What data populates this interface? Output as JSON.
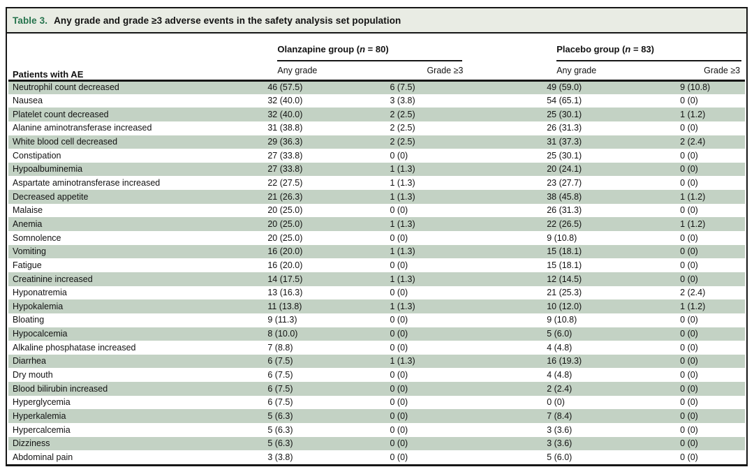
{
  "colors": {
    "stripe_green": "#c3d2c4",
    "title_bar_bg": "#e9ece4",
    "table_label_green": "#26734d",
    "rule_black": "#161616"
  },
  "table": {
    "label": "Table 3.",
    "title": "Any grade and grade ≥3 adverse events in the safety analysis set population",
    "row_header": "Patients with AE",
    "groups": [
      {
        "prefix": "Olanzapine group (",
        "n_symbol": "n",
        "suffix": " = 80)",
        "subcolumns": [
          "Any grade",
          "Grade ≥3"
        ]
      },
      {
        "prefix": "Placebo group (",
        "n_symbol": "n",
        "suffix": " = 83)",
        "subcolumns": [
          "Any grade",
          "Grade ≥3"
        ]
      }
    ],
    "rows": [
      {
        "ae": "Neutrophil count decreased",
        "olz_any": "46 (57.5)",
        "olz_g3": "6 (7.5)",
        "pbo_any": "49 (59.0)",
        "pbo_g3": "9 (10.8)"
      },
      {
        "ae": "Nausea",
        "olz_any": "32 (40.0)",
        "olz_g3": "3 (3.8)",
        "pbo_any": "54 (65.1)",
        "pbo_g3": "0 (0)"
      },
      {
        "ae": "Platelet count decreased",
        "olz_any": "32 (40.0)",
        "olz_g3": "2 (2.5)",
        "pbo_any": "25 (30.1)",
        "pbo_g3": "1 (1.2)"
      },
      {
        "ae": "Alanine aminotransferase increased",
        "olz_any": "31 (38.8)",
        "olz_g3": "2 (2.5)",
        "pbo_any": "26 (31.3)",
        "pbo_g3": "0 (0)"
      },
      {
        "ae": "White blood cell decreased",
        "olz_any": "29 (36.3)",
        "olz_g3": "2 (2.5)",
        "pbo_any": "31 (37.3)",
        "pbo_g3": "2 (2.4)"
      },
      {
        "ae": "Constipation",
        "olz_any": "27 (33.8)",
        "olz_g3": "0 (0)",
        "pbo_any": "25 (30.1)",
        "pbo_g3": "0 (0)"
      },
      {
        "ae": "Hypoalbuminemia",
        "olz_any": "27 (33.8)",
        "olz_g3": "1 (1.3)",
        "pbo_any": "20 (24.1)",
        "pbo_g3": "0 (0)"
      },
      {
        "ae": "Aspartate aminotransferase increased",
        "olz_any": "22 (27.5)",
        "olz_g3": "1 (1.3)",
        "pbo_any": "23 (27.7)",
        "pbo_g3": "0 (0)"
      },
      {
        "ae": "Decreased appetite",
        "olz_any": "21 (26.3)",
        "olz_g3": "1 (1.3)",
        "pbo_any": "38 (45.8)",
        "pbo_g3": "1 (1.2)"
      },
      {
        "ae": "Malaise",
        "olz_any": "20 (25.0)",
        "olz_g3": "0 (0)",
        "pbo_any": "26 (31.3)",
        "pbo_g3": "0 (0)"
      },
      {
        "ae": "Anemia",
        "olz_any": "20 (25.0)",
        "olz_g3": "1 (1.3)",
        "pbo_any": "22 (26.5)",
        "pbo_g3": "1 (1.2)"
      },
      {
        "ae": "Somnolence",
        "olz_any": "20 (25.0)",
        "olz_g3": "0 (0)",
        "pbo_any": "9 (10.8)",
        "pbo_g3": "0 (0)"
      },
      {
        "ae": "Vomiting",
        "olz_any": "16 (20.0)",
        "olz_g3": "1 (1.3)",
        "pbo_any": "15 (18.1)",
        "pbo_g3": "0 (0)"
      },
      {
        "ae": "Fatigue",
        "olz_any": "16 (20.0)",
        "olz_g3": "0 (0)",
        "pbo_any": "15 (18.1)",
        "pbo_g3": "0 (0)"
      },
      {
        "ae": "Creatinine increased",
        "olz_any": "14 (17.5)",
        "olz_g3": "1 (1.3)",
        "pbo_any": "12 (14.5)",
        "pbo_g3": "0 (0)"
      },
      {
        "ae": "Hyponatremia",
        "olz_any": "13 (16.3)",
        "olz_g3": "0 (0)",
        "pbo_any": "21 (25.3)",
        "pbo_g3": "2 (2.4)"
      },
      {
        "ae": "Hypokalemia",
        "olz_any": "11 (13.8)",
        "olz_g3": "1 (1.3)",
        "pbo_any": "10 (12.0)",
        "pbo_g3": "1 (1.2)"
      },
      {
        "ae": "Bloating",
        "olz_any": "9 (11.3)",
        "olz_g3": "0 (0)",
        "pbo_any": "9 (10.8)",
        "pbo_g3": "0 (0)"
      },
      {
        "ae": "Hypocalcemia",
        "olz_any": "8 (10.0)",
        "olz_g3": "0 (0)",
        "pbo_any": "5 (6.0)",
        "pbo_g3": "0 (0)"
      },
      {
        "ae": "Alkaline phosphatase increased",
        "olz_any": "7 (8.8)",
        "olz_g3": "0 (0)",
        "pbo_any": "4 (4.8)",
        "pbo_g3": "0 (0)"
      },
      {
        "ae": "Diarrhea",
        "olz_any": "6 (7.5)",
        "olz_g3": "1 (1.3)",
        "pbo_any": "16 (19.3)",
        "pbo_g3": "0 (0)"
      },
      {
        "ae": "Dry mouth",
        "olz_any": "6 (7.5)",
        "olz_g3": "0 (0)",
        "pbo_any": "4 (4.8)",
        "pbo_g3": "0 (0)"
      },
      {
        "ae": "Blood bilirubin increased",
        "olz_any": "6 (7.5)",
        "olz_g3": "0 (0)",
        "pbo_any": "2 (2.4)",
        "pbo_g3": "0 (0)"
      },
      {
        "ae": "Hyperglycemia",
        "olz_any": "6 (7.5)",
        "olz_g3": "0 (0)",
        "pbo_any": "0 (0)",
        "pbo_g3": "0 (0)"
      },
      {
        "ae": "Hyperkalemia",
        "olz_any": "5 (6.3)",
        "olz_g3": "0 (0)",
        "pbo_any": "7 (8.4)",
        "pbo_g3": "0 (0)"
      },
      {
        "ae": "Hypercalcemia",
        "olz_any": "5 (6.3)",
        "olz_g3": "0 (0)",
        "pbo_any": "3 (3.6)",
        "pbo_g3": "0 (0)"
      },
      {
        "ae": "Dizziness",
        "olz_any": "5 (6.3)",
        "olz_g3": "0 (0)",
        "pbo_any": "3 (3.6)",
        "pbo_g3": "0 (0)"
      },
      {
        "ae": "Abdominal pain",
        "olz_any": "3 (3.8)",
        "olz_g3": "0 (0)",
        "pbo_any": "5 (6.0)",
        "pbo_g3": "0 (0)"
      }
    ]
  }
}
